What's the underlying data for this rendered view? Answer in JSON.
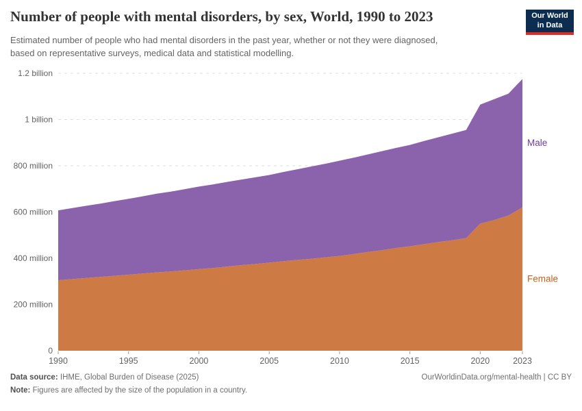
{
  "header": {
    "title": "Number of people with mental disorders, by sex, World, 1990 to 2023",
    "subtitle_line1": "Estimated number of people who had mental disorders in the past year, whether or not they were diagnosed,",
    "subtitle_line2": "based on representative surveys, medical data and statistical modelling.",
    "logo": {
      "line1": "Our World",
      "line2": "in Data",
      "bg_color": "#0c2d4f",
      "accent_color": "#dc2e27"
    }
  },
  "chart_data": {
    "type": "area",
    "stacked": true,
    "title": "Number of people with mental disorders, by sex, World, 1990 to 2023",
    "xlabel": "",
    "ylabel": "",
    "units": "people (values stored in millions)",
    "grid": "dashed-horizontal",
    "legend_position": "right-inline-labels",
    "xlim": [
      1990,
      2023
    ],
    "ylim_millions": [
      0,
      1200
    ],
    "x": [
      1990,
      1991,
      1992,
      1993,
      1994,
      1995,
      1996,
      1997,
      1998,
      1999,
      2000,
      2001,
      2002,
      2003,
      2004,
      2005,
      2006,
      2007,
      2008,
      2009,
      2010,
      2011,
      2012,
      2013,
      2014,
      2015,
      2016,
      2017,
      2018,
      2019,
      2020,
      2021,
      2022,
      2023
    ],
    "series": [
      {
        "name": "Female",
        "color": "#ce7a45",
        "label_color": "#c4611d",
        "values_millions": [
          305,
          310,
          315,
          319,
          324,
          329,
          334,
          339,
          343,
          348,
          353,
          358,
          364,
          370,
          375,
          381,
          387,
          393,
          398,
          404,
          410,
          418,
          427,
          435,
          444,
          452,
          461,
          470,
          478,
          487,
          550,
          565,
          585,
          620
        ]
      },
      {
        "name": "Male",
        "color": "#8b63ac",
        "label_color": "#6d3e98",
        "values_millions": [
          302,
          307,
          312,
          317,
          323,
          328,
          334,
          340,
          345,
          351,
          357,
          361,
          366,
          370,
          375,
          379,
          386,
          392,
          399,
          405,
          412,
          417,
          422,
          428,
          433,
          438,
          446,
          453,
          461,
          468,
          515,
          523,
          527,
          555
        ]
      }
    ],
    "yticks": [
      {
        "value_millions": 0,
        "label": "0"
      },
      {
        "value_millions": 200,
        "label": "200 million"
      },
      {
        "value_millions": 400,
        "label": "400 million"
      },
      {
        "value_millions": 600,
        "label": "600 million"
      },
      {
        "value_millions": 800,
        "label": "800 million"
      },
      {
        "value_millions": 1000,
        "label": "1 billion"
      },
      {
        "value_millions": 1200,
        "label": "1.2 billion"
      }
    ],
    "xticks": [
      1990,
      1995,
      2000,
      2005,
      2010,
      2015,
      2020,
      2023
    ]
  },
  "footer": {
    "source_label": "Data source:",
    "source_text": "IHME, Global Burden of Disease (2025)",
    "note_label": "Note:",
    "note_text": "Figures are affected by the size of the population in a country.",
    "attribution": "OurWorldinData.org/mental-health | CC BY"
  }
}
